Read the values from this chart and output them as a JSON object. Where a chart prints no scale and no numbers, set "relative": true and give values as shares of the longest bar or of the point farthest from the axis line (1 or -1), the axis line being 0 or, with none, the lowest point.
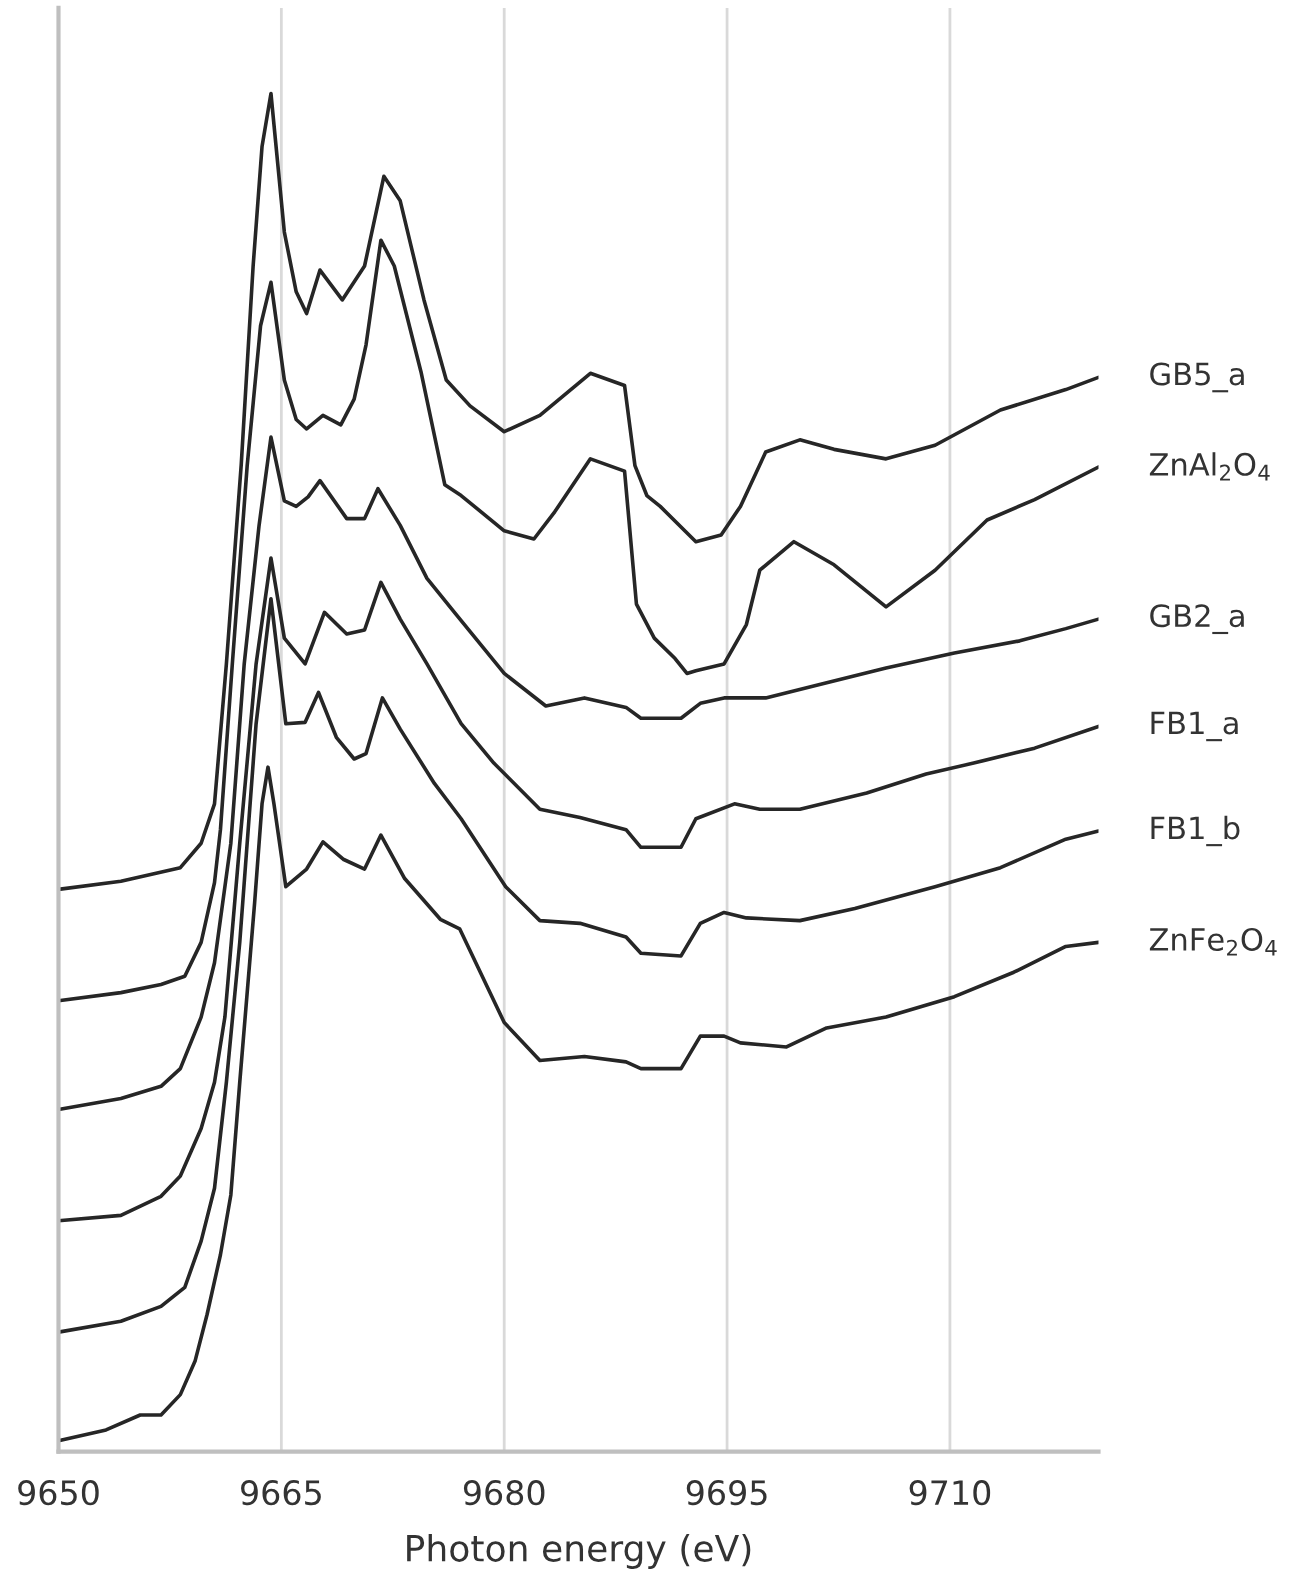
{
  "chart_data": {
    "type": "line",
    "relative": true,
    "xlabel": "Photon energy (eV)",
    "xlim": [
      9650,
      9720
    ],
    "xticks": [
      9650,
      9665,
      9680,
      9695,
      9710
    ],
    "grid": "x",
    "legend": false,
    "marker": "none",
    "line_style": "solid",
    "series": [
      {
        "name": "GB5_a",
        "color": "#262626",
        "x": [
          9650.0,
          9654.2,
          9658.2,
          9659.6,
          9660.5,
          9661.3,
          9662.3,
          9663.1,
          9663.7,
          9664.3,
          9665.2,
          9666.0,
          9666.7,
          9667.6,
          9669.1,
          9670.6,
          9671.9,
          9673.0,
          9674.6,
          9676.1,
          9677.7,
          9680.0,
          9682.4,
          9685.8,
          9688.1,
          9688.8,
          9689.6,
          9690.5,
          9692.9,
          9694.6,
          9695.9,
          9697.6,
          9699.9,
          9702.2,
          9705.7,
          9709.0,
          9713.4,
          9717.8,
          9720.0
        ],
        "values": [
          0.414,
          0.42,
          0.43,
          0.448,
          0.477,
          0.58,
          0.727,
          0.873,
          0.961,
          1.0,
          0.898,
          0.854,
          0.838,
          0.87,
          0.848,
          0.873,
          0.939,
          0.921,
          0.848,
          0.789,
          0.77,
          0.751,
          0.763,
          0.794,
          0.785,
          0.726,
          0.704,
          0.696,
          0.67,
          0.675,
          0.696,
          0.736,
          0.745,
          0.738,
          0.731,
          0.741,
          0.767,
          0.782,
          0.791
        ]
      },
      {
        "name": "ZnAl$_{2}$O$_{4}$",
        "color": "#262626",
        "x": [
          9650.0,
          9654.2,
          9656.9,
          9658.5,
          9659.6,
          9660.5,
          9660.9,
          9661.7,
          9662.7,
          9663.6,
          9664.3,
          9665.2,
          9666.0,
          9666.7,
          9667.8,
          9669.0,
          9669.9,
          9670.7,
          9671.7,
          9672.6,
          9674.4,
          9676.0,
          9677.1,
          9680.0,
          9682.0,
          9683.4,
          9685.8,
          9688.1,
          9688.9,
          9690.1,
          9691.5,
          9692.3,
          9692.9,
          9694.8,
          9696.3,
          9697.2,
          9699.5,
          9702.2,
          9705.7,
          9709.0,
          9712.5,
          9715.7,
          9720.0
        ],
        "values": [
          0.332,
          0.338,
          0.344,
          0.35,
          0.375,
          0.419,
          0.458,
          0.58,
          0.726,
          0.829,
          0.861,
          0.789,
          0.76,
          0.753,
          0.763,
          0.756,
          0.775,
          0.815,
          0.892,
          0.873,
          0.795,
          0.712,
          0.704,
          0.678,
          0.672,
          0.692,
          0.731,
          0.722,
          0.624,
          0.599,
          0.584,
          0.573,
          0.575,
          0.58,
          0.609,
          0.649,
          0.67,
          0.653,
          0.622,
          0.649,
          0.686,
          0.701,
          0.725
        ]
      },
      {
        "name": "GB2_a",
        "color": "#262626",
        "x": [
          9650.0,
          9654.2,
          9656.9,
          9658.2,
          9659.6,
          9660.5,
          9661.6,
          9662.5,
          9663.5,
          9664.3,
          9665.2,
          9666.0,
          9666.8,
          9667.6,
          9669.4,
          9670.6,
          9671.5,
          9673.0,
          9674.8,
          9676.8,
          9680.0,
          9682.8,
          9685.4,
          9688.2,
          9689.2,
          9691.9,
          9693.2,
          9694.8,
          9697.6,
          9701.3,
          9705.7,
          9710.3,
          9714.7,
          9717.8,
          9720.0
        ],
        "values": [
          0.252,
          0.26,
          0.269,
          0.282,
          0.32,
          0.36,
          0.448,
          0.58,
          0.682,
          0.747,
          0.7,
          0.696,
          0.703,
          0.715,
          0.687,
          0.687,
          0.709,
          0.682,
          0.643,
          0.616,
          0.573,
          0.549,
          0.555,
          0.548,
          0.54,
          0.54,
          0.551,
          0.555,
          0.555,
          0.565,
          0.577,
          0.588,
          0.597,
          0.606,
          0.613
        ]
      },
      {
        "name": "FB1_a",
        "color": "#262626",
        "x": [
          9650.0,
          9654.2,
          9656.9,
          9658.2,
          9659.6,
          9660.5,
          9661.2,
          9662.2,
          9663.3,
          9664.3,
          9665.2,
          9666.6,
          9667.9,
          9669.4,
          9670.6,
          9671.7,
          9673.0,
          9674.8,
          9677.1,
          9679.3,
          9682.4,
          9685.1,
          9688.2,
          9689.2,
          9691.9,
          9692.9,
          9695.5,
          9697.2,
          9699.9,
          9704.4,
          9708.4,
          9711.6,
          9715.7,
          9720.0
        ],
        "values": [
          0.17,
          0.174,
          0.188,
          0.203,
          0.238,
          0.272,
          0.32,
          0.448,
          0.58,
          0.658,
          0.599,
          0.58,
          0.618,
          0.602,
          0.605,
          0.64,
          0.613,
          0.58,
          0.536,
          0.507,
          0.473,
          0.467,
          0.458,
          0.445,
          0.445,
          0.466,
          0.477,
          0.473,
          0.473,
          0.485,
          0.499,
          0.507,
          0.518,
          0.534
        ]
      },
      {
        "name": "FB1_b",
        "color": "#262626",
        "x": [
          9650.0,
          9654.2,
          9656.9,
          9658.5,
          9659.6,
          9660.5,
          9661.3,
          9662.2,
          9663.3,
          9664.3,
          9665.3,
          9666.6,
          9667.5,
          9668.7,
          9669.9,
          9670.7,
          9671.8,
          9673.0,
          9675.3,
          9677.1,
          9680.1,
          9682.4,
          9685.1,
          9688.2,
          9689.2,
          9691.9,
          9693.2,
          9694.8,
          9696.3,
          9699.9,
          9703.6,
          9709.0,
          9713.4,
          9717.8,
          9720.0
        ],
        "values": [
          0.088,
          0.096,
          0.107,
          0.121,
          0.155,
          0.194,
          0.272,
          0.375,
          0.536,
          0.628,
          0.536,
          0.537,
          0.559,
          0.526,
          0.51,
          0.514,
          0.555,
          0.532,
          0.492,
          0.466,
          0.416,
          0.391,
          0.389,
          0.379,
          0.367,
          0.365,
          0.389,
          0.397,
          0.393,
          0.391,
          0.4,
          0.416,
          0.43,
          0.451,
          0.457
        ]
      },
      {
        "name": "ZnFe$_{2}$O$_{4}$",
        "color": "#262626",
        "x": [
          9650.0,
          9653.2,
          9655.5,
          9656.9,
          9658.2,
          9659.2,
          9660.0,
          9660.9,
          9661.6,
          9662.2,
          9663.2,
          9663.7,
          9664.1,
          9664.5,
          9665.3,
          9666.7,
          9667.8,
          9669.2,
          9670.6,
          9671.7,
          9673.3,
          9675.7,
          9677.0,
          9680.0,
          9682.4,
          9685.4,
          9688.2,
          9689.2,
          9691.9,
          9693.2,
          9694.8,
          9695.9,
          9699.0,
          9701.7,
          9705.7,
          9710.3,
          9714.3,
          9717.8,
          9720.0
        ],
        "values": [
          0.008,
          0.016,
          0.027,
          0.027,
          0.042,
          0.067,
          0.101,
          0.145,
          0.189,
          0.272,
          0.404,
          0.477,
          0.504,
          0.477,
          0.416,
          0.429,
          0.449,
          0.436,
          0.429,
          0.454,
          0.422,
          0.392,
          0.385,
          0.316,
          0.288,
          0.291,
          0.287,
          0.282,
          0.282,
          0.306,
          0.306,
          0.301,
          0.298,
          0.312,
          0.32,
          0.335,
          0.353,
          0.372,
          0.375
        ]
      }
    ]
  }
}
